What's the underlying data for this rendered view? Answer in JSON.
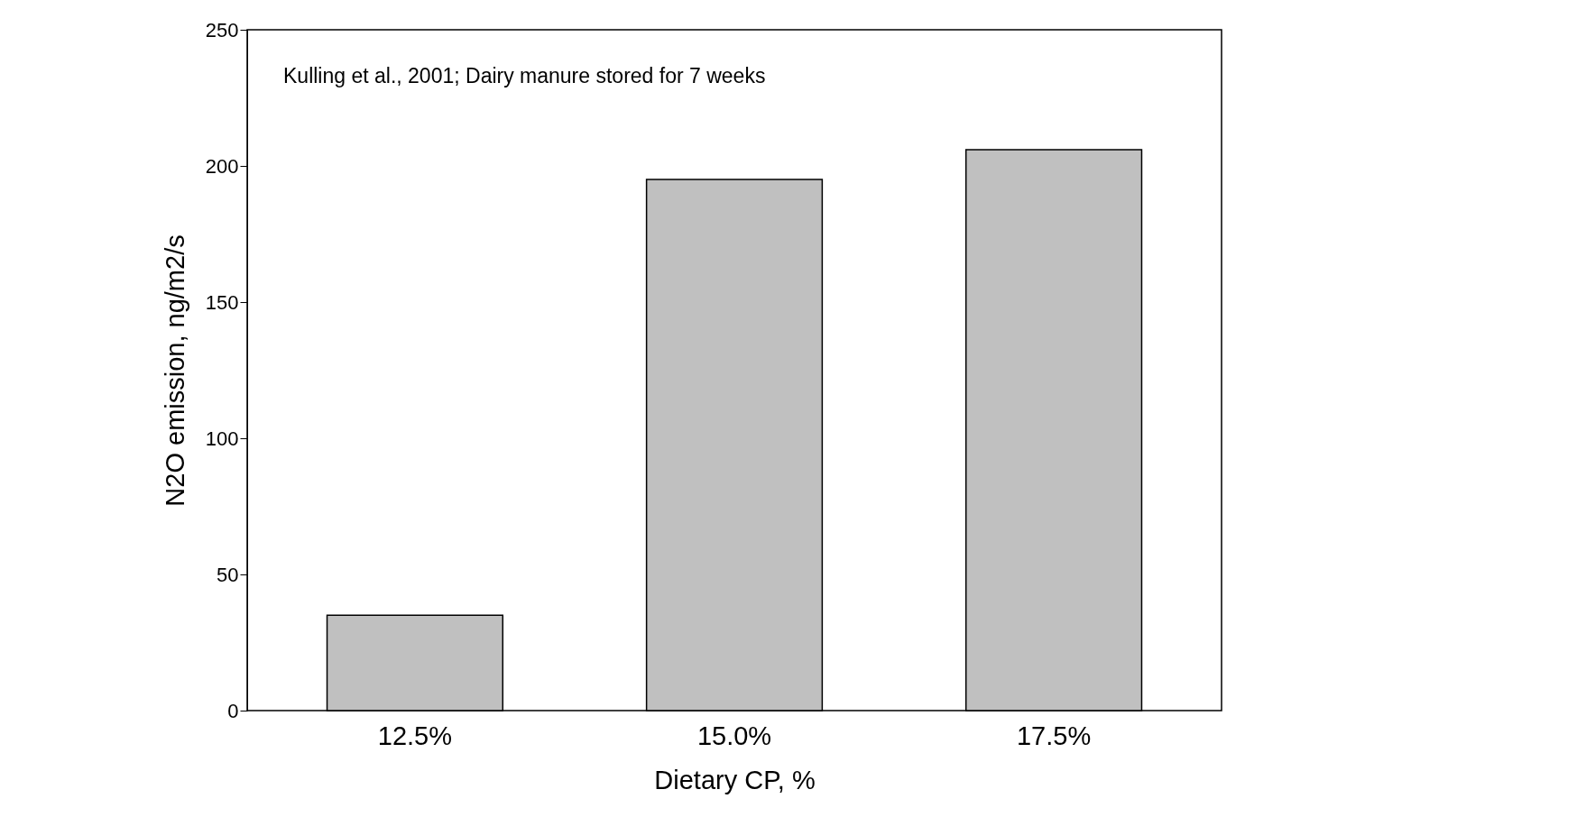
{
  "chart_data": {
    "type": "bar",
    "xlabel": "Dietary CP, %",
    "ylabel": "N2O emission, ng/m2/s",
    "annotations": [
      "Kulling et al., 2001; Dairy manure stored for 7 weeks"
    ],
    "categories": [
      "12.5%",
      "15.0%",
      "17.5%"
    ],
    "values": [
      35,
      195,
      206
    ],
    "color": "#c0c0c0",
    "ylim": [
      0,
      250
    ],
    "yticks": [
      0,
      50,
      100,
      150,
      200,
      250
    ],
    "grid": false
  }
}
